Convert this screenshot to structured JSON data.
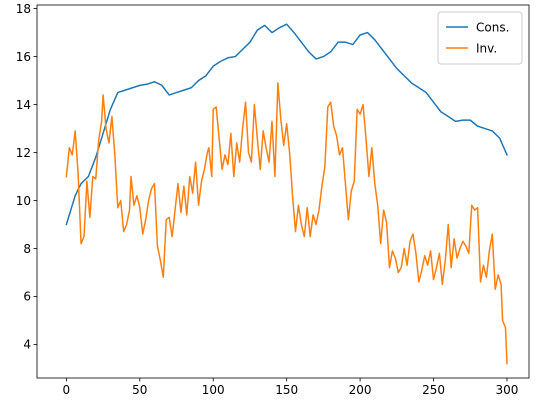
{
  "chart_data": {
    "type": "line",
    "title": "",
    "xlabel": "",
    "ylabel": "",
    "xlim": [
      -20,
      315
    ],
    "ylim": [
      2.6,
      18.15
    ],
    "xticks": [
      0,
      50,
      100,
      150,
      200,
      250,
      300
    ],
    "yticks": [
      4,
      6,
      8,
      10,
      12,
      14,
      16,
      18
    ],
    "grid": false,
    "legend": {
      "position": "top-right"
    },
    "series": [
      {
        "name": "Cons.",
        "color": "#1f77b4",
        "points": [
          [
            0,
            9.0
          ],
          [
            3,
            9.6
          ],
          [
            6,
            10.2
          ],
          [
            10,
            10.7
          ],
          [
            15,
            11.0
          ],
          [
            20,
            11.8
          ],
          [
            25,
            12.8
          ],
          [
            30,
            13.8
          ],
          [
            35,
            14.5
          ],
          [
            40,
            14.6
          ],
          [
            45,
            14.7
          ],
          [
            50,
            14.8
          ],
          [
            55,
            14.85
          ],
          [
            60,
            14.95
          ],
          [
            65,
            14.8
          ],
          [
            70,
            14.4
          ],
          [
            75,
            14.5
          ],
          [
            80,
            14.6
          ],
          [
            85,
            14.7
          ],
          [
            90,
            15.0
          ],
          [
            95,
            15.2
          ],
          [
            100,
            15.6
          ],
          [
            105,
            15.8
          ],
          [
            110,
            15.95
          ],
          [
            115,
            16.0
          ],
          [
            120,
            16.3
          ],
          [
            125,
            16.6
          ],
          [
            130,
            17.1
          ],
          [
            135,
            17.3
          ],
          [
            140,
            17.0
          ],
          [
            145,
            17.2
          ],
          [
            150,
            17.35
          ],
          [
            155,
            17.0
          ],
          [
            160,
            16.6
          ],
          [
            165,
            16.2
          ],
          [
            170,
            15.9
          ],
          [
            175,
            16.0
          ],
          [
            180,
            16.2
          ],
          [
            185,
            16.6
          ],
          [
            190,
            16.6
          ],
          [
            195,
            16.5
          ],
          [
            200,
            16.9
          ],
          [
            205,
            17.0
          ],
          [
            210,
            16.7
          ],
          [
            215,
            16.3
          ],
          [
            220,
            15.9
          ],
          [
            225,
            15.5
          ],
          [
            230,
            15.2
          ],
          [
            235,
            14.9
          ],
          [
            240,
            14.7
          ],
          [
            245,
            14.5
          ],
          [
            250,
            14.1
          ],
          [
            255,
            13.7
          ],
          [
            260,
            13.5
          ],
          [
            265,
            13.3
          ],
          [
            270,
            13.35
          ],
          [
            275,
            13.35
          ],
          [
            280,
            13.1
          ],
          [
            285,
            13.0
          ],
          [
            290,
            12.9
          ],
          [
            295,
            12.6
          ],
          [
            300,
            11.9
          ]
        ]
      },
      {
        "name": "Inv.",
        "color": "#ff7f0e",
        "points": [
          [
            0,
            11.0
          ],
          [
            2,
            12.2
          ],
          [
            4,
            11.9
          ],
          [
            6,
            12.9
          ],
          [
            8,
            11.1
          ],
          [
            10,
            8.2
          ],
          [
            12,
            8.5
          ],
          [
            14,
            10.8
          ],
          [
            16,
            9.3
          ],
          [
            18,
            11.0
          ],
          [
            20,
            10.9
          ],
          [
            22,
            12.5
          ],
          [
            24,
            13.3
          ],
          [
            25,
            14.4
          ],
          [
            27,
            13.0
          ],
          [
            29,
            12.4
          ],
          [
            31,
            13.5
          ],
          [
            33,
            11.9
          ],
          [
            35,
            9.7
          ],
          [
            37,
            10.0
          ],
          [
            39,
            8.7
          ],
          [
            41,
            9.0
          ],
          [
            43,
            9.6
          ],
          [
            44,
            11.0
          ],
          [
            46,
            9.8
          ],
          [
            48,
            10.2
          ],
          [
            50,
            9.7
          ],
          [
            52,
            8.6
          ],
          [
            54,
            9.2
          ],
          [
            56,
            10.0
          ],
          [
            58,
            10.5
          ],
          [
            60,
            10.7
          ],
          [
            62,
            8.1
          ],
          [
            64,
            7.5
          ],
          [
            66,
            6.8
          ],
          [
            68,
            9.2
          ],
          [
            70,
            9.3
          ],
          [
            72,
            8.5
          ],
          [
            74,
            9.6
          ],
          [
            76,
            10.7
          ],
          [
            78,
            9.5
          ],
          [
            80,
            10.6
          ],
          [
            82,
            9.4
          ],
          [
            84,
            11.0
          ],
          [
            86,
            10.3
          ],
          [
            88,
            11.6
          ],
          [
            90,
            9.8
          ],
          [
            92,
            10.8
          ],
          [
            94,
            11.3
          ],
          [
            96,
            12.0
          ],
          [
            97,
            12.2
          ],
          [
            99,
            11.0
          ],
          [
            100,
            13.8
          ],
          [
            102,
            13.9
          ],
          [
            104,
            12.6
          ],
          [
            106,
            11.3
          ],
          [
            108,
            11.9
          ],
          [
            110,
            11.5
          ],
          [
            112,
            12.8
          ],
          [
            114,
            11.0
          ],
          [
            116,
            12.4
          ],
          [
            118,
            11.6
          ],
          [
            120,
            13.0
          ],
          [
            122,
            14.1
          ],
          [
            124,
            12.0
          ],
          [
            126,
            11.6
          ],
          [
            128,
            14.0
          ],
          [
            130,
            12.6
          ],
          [
            132,
            11.3
          ],
          [
            134,
            12.9
          ],
          [
            136,
            12.2
          ],
          [
            138,
            11.6
          ],
          [
            140,
            13.3
          ],
          [
            142,
            11.0
          ],
          [
            144,
            14.9
          ],
          [
            146,
            13.4
          ],
          [
            148,
            12.3
          ],
          [
            150,
            13.2
          ],
          [
            152,
            12.0
          ],
          [
            154,
            10.2
          ],
          [
            156,
            8.7
          ],
          [
            158,
            9.8
          ],
          [
            160,
            9.0
          ],
          [
            162,
            8.5
          ],
          [
            164,
            9.7
          ],
          [
            166,
            8.5
          ],
          [
            168,
            9.4
          ],
          [
            170,
            9.0
          ],
          [
            172,
            9.6
          ],
          [
            174,
            10.6
          ],
          [
            176,
            11.4
          ],
          [
            178,
            13.9
          ],
          [
            180,
            14.1
          ],
          [
            182,
            13.1
          ],
          [
            184,
            12.7
          ],
          [
            186,
            11.9
          ],
          [
            188,
            12.2
          ],
          [
            190,
            10.7
          ],
          [
            192,
            9.2
          ],
          [
            194,
            10.4
          ],
          [
            196,
            10.8
          ],
          [
            198,
            13.8
          ],
          [
            200,
            13.6
          ],
          [
            202,
            14.0
          ],
          [
            204,
            12.6
          ],
          [
            206,
            11.0
          ],
          [
            208,
            12.2
          ],
          [
            210,
            10.7
          ],
          [
            212,
            9.8
          ],
          [
            214,
            8.2
          ],
          [
            216,
            9.6
          ],
          [
            218,
            9.1
          ],
          [
            220,
            7.2
          ],
          [
            222,
            7.9
          ],
          [
            224,
            7.6
          ],
          [
            226,
            7.0
          ],
          [
            228,
            7.2
          ],
          [
            230,
            8.0
          ],
          [
            232,
            7.3
          ],
          [
            234,
            8.3
          ],
          [
            236,
            8.6
          ],
          [
            238,
            7.8
          ],
          [
            240,
            6.6
          ],
          [
            242,
            7.1
          ],
          [
            244,
            7.7
          ],
          [
            246,
            7.3
          ],
          [
            248,
            7.9
          ],
          [
            250,
            6.7
          ],
          [
            252,
            7.2
          ],
          [
            254,
            7.8
          ],
          [
            256,
            6.5
          ],
          [
            258,
            7.5
          ],
          [
            260,
            9.0
          ],
          [
            262,
            7.2
          ],
          [
            264,
            8.4
          ],
          [
            266,
            7.6
          ],
          [
            268,
            8.0
          ],
          [
            270,
            8.3
          ],
          [
            272,
            8.1
          ],
          [
            274,
            7.8
          ],
          [
            276,
            9.8
          ],
          [
            278,
            9.6
          ],
          [
            280,
            9.7
          ],
          [
            282,
            6.6
          ],
          [
            284,
            7.3
          ],
          [
            286,
            6.8
          ],
          [
            288,
            7.9
          ],
          [
            290,
            8.6
          ],
          [
            292,
            6.3
          ],
          [
            294,
            6.9
          ],
          [
            296,
            6.5
          ],
          [
            297,
            5.0
          ],
          [
            299,
            4.7
          ],
          [
            300,
            3.2
          ]
        ]
      }
    ]
  }
}
